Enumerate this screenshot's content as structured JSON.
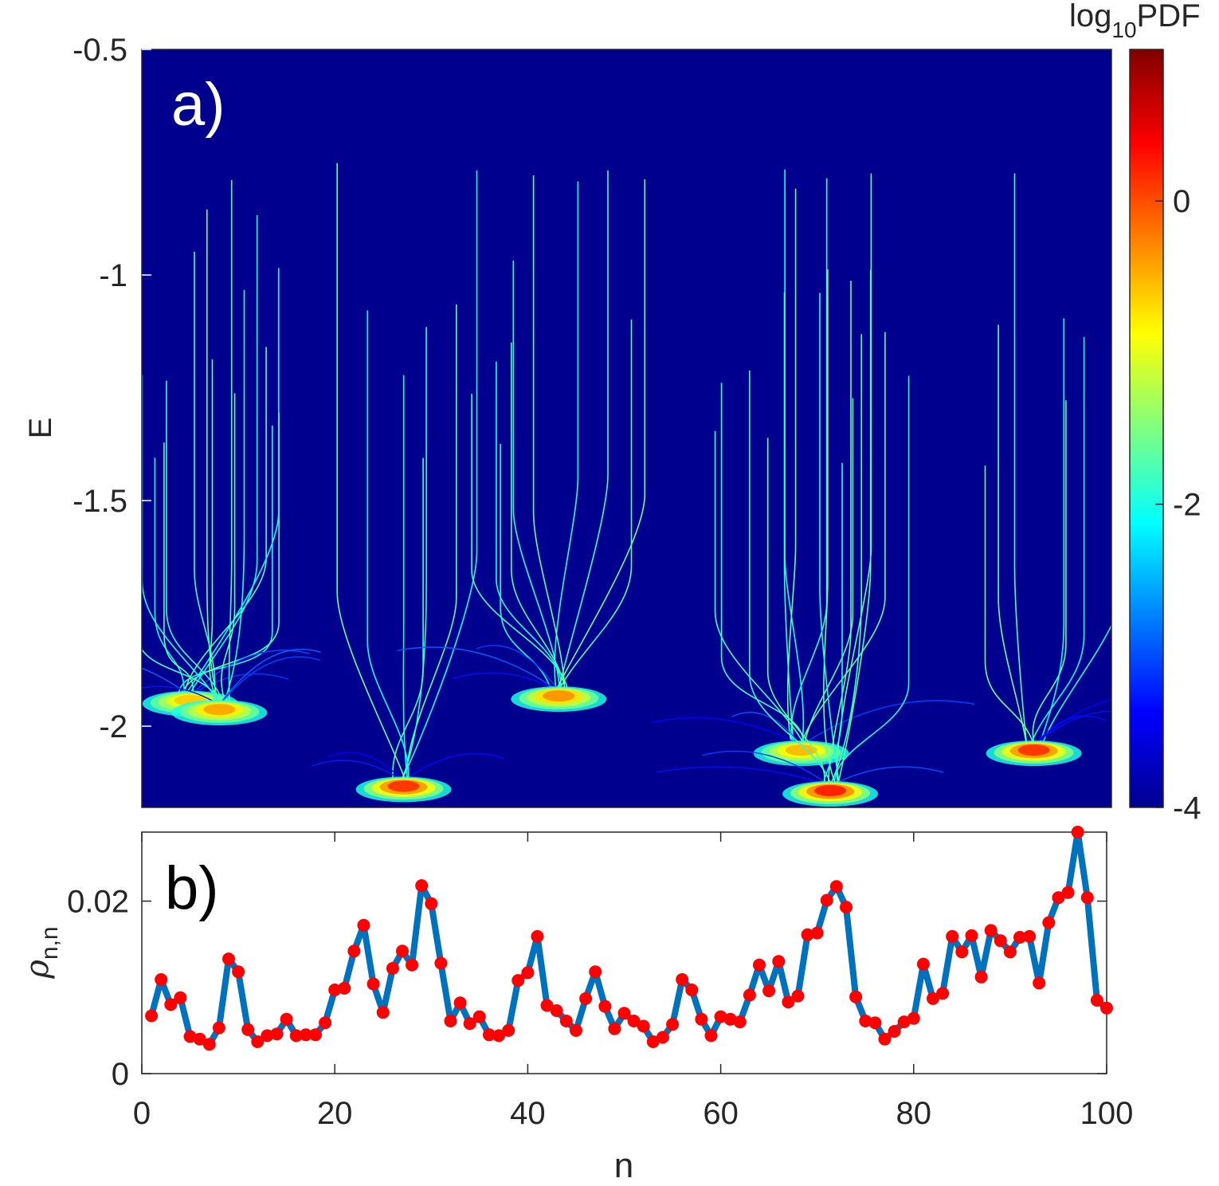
{
  "chart_data": [
    {
      "type": "heatmap",
      "panel_label": "a)",
      "ylabel": "E",
      "ylim": [
        -2.18,
        -0.5
      ],
      "yticks": [
        {
          "value": -0.5,
          "label": "-0.5"
        },
        {
          "value": -1,
          "label": "-1"
        },
        {
          "value": -1.5,
          "label": "-1.5"
        },
        {
          "value": -2,
          "label": "-2"
        }
      ],
      "xlim": [
        0,
        100
      ],
      "colorbar": {
        "title_main": "log",
        "title_sub": "10",
        "title_tail": "PDF",
        "range": [
          -4,
          1
        ],
        "ticks": [
          {
            "value": 0,
            "label": "0"
          },
          {
            "value": -2,
            "label": "-2"
          },
          {
            "value": -4,
            "label": "-4"
          }
        ]
      },
      "background_color": "#00008f",
      "clusters": [
        {
          "n": 5,
          "E": -1.95,
          "level": -0.6
        },
        {
          "n": 8,
          "E": -1.97,
          "level": -0.4
        },
        {
          "n": 27,
          "E": -2.14,
          "level": 0.2
        },
        {
          "n": 43,
          "E": -1.94,
          "level": -0.3
        },
        {
          "n": 68,
          "E": -2.06,
          "level": -0.5
        },
        {
          "n": 71,
          "E": -2.15,
          "level": 0.3
        },
        {
          "n": 92,
          "E": -2.06,
          "level": 0.2
        }
      ]
    },
    {
      "type": "line",
      "panel_label": "b)",
      "xlabel": "n",
      "ylabel_symbol": "ρ",
      "ylabel_sub": "n,n",
      "xlim": [
        0,
        100
      ],
      "ylim": [
        0,
        0.028
      ],
      "xticks": [
        {
          "value": 0,
          "label": "0"
        },
        {
          "value": 20,
          "label": "20"
        },
        {
          "value": 40,
          "label": "40"
        },
        {
          "value": 60,
          "label": "60"
        },
        {
          "value": 80,
          "label": "80"
        },
        {
          "value": 100,
          "label": "100"
        }
      ],
      "yticks": [
        {
          "value": 0,
          "label": "0"
        },
        {
          "value": 0.02,
          "label": "0.02"
        }
      ],
      "series": [
        {
          "name": "rho_nn",
          "line_color": "#0072bd",
          "marker_color": "#ff0000",
          "x": [
            1,
            2,
            3,
            4,
            5,
            6,
            7,
            8,
            9,
            10,
            11,
            12,
            13,
            14,
            15,
            16,
            17,
            18,
            19,
            20,
            21,
            22,
            23,
            24,
            25,
            26,
            27,
            28,
            29,
            30,
            31,
            32,
            33,
            34,
            35,
            36,
            37,
            38,
            39,
            40,
            41,
            42,
            43,
            44,
            45,
            46,
            47,
            48,
            49,
            50,
            51,
            52,
            53,
            54,
            55,
            56,
            57,
            58,
            59,
            60,
            61,
            62,
            63,
            64,
            65,
            66,
            67,
            68,
            69,
            70,
            71,
            72,
            73,
            74,
            75,
            76,
            77,
            78,
            79,
            80,
            81,
            82,
            83,
            84,
            85,
            86,
            87,
            88,
            89,
            90,
            91,
            92,
            93,
            94,
            95,
            96,
            97,
            98,
            99,
            100
          ],
          "values": [
            0.0067,
            0.0109,
            0.008,
            0.0088,
            0.0043,
            0.004,
            0.0034,
            0.0053,
            0.0133,
            0.0118,
            0.0051,
            0.0037,
            0.0044,
            0.0046,
            0.0063,
            0.0044,
            0.0045,
            0.0045,
            0.0059,
            0.0097,
            0.0099,
            0.0142,
            0.0172,
            0.0104,
            0.0071,
            0.0122,
            0.0142,
            0.0126,
            0.0218,
            0.0197,
            0.0128,
            0.0061,
            0.0082,
            0.0058,
            0.0066,
            0.0045,
            0.0044,
            0.005,
            0.0108,
            0.0117,
            0.0159,
            0.0079,
            0.0073,
            0.0061,
            0.005,
            0.0087,
            0.0118,
            0.0078,
            0.0052,
            0.007,
            0.0061,
            0.0055,
            0.0037,
            0.0042,
            0.0057,
            0.0109,
            0.0097,
            0.0063,
            0.0044,
            0.0066,
            0.0063,
            0.006,
            0.0091,
            0.0126,
            0.0096,
            0.013,
            0.0083,
            0.009,
            0.0161,
            0.0163,
            0.0201,
            0.0217,
            0.0193,
            0.0089,
            0.0061,
            0.0059,
            0.004,
            0.0049,
            0.006,
            0.0064,
            0.0127,
            0.0087,
            0.0093,
            0.0159,
            0.0141,
            0.016,
            0.0112,
            0.0166,
            0.0154,
            0.0141,
            0.0158,
            0.0159,
            0.0105,
            0.0175,
            0.0204,
            0.021,
            0.028,
            0.0204,
            0.0085,
            0.0076
          ]
        }
      ]
    }
  ]
}
